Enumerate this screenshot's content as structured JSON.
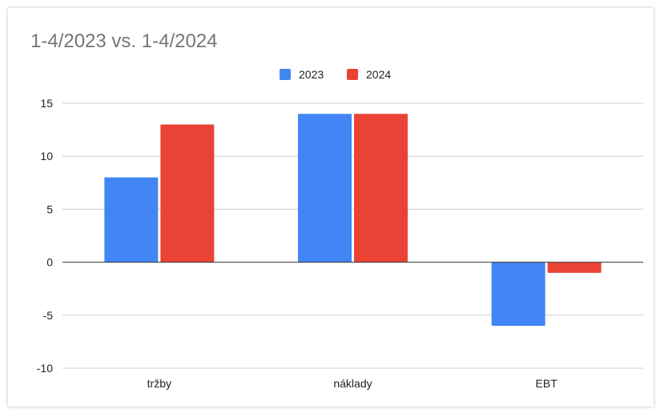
{
  "chart_data": {
    "type": "bar",
    "title": "1-4/2023 vs. 1-4/2024",
    "categories": [
      "tržby",
      "náklady",
      "EBT"
    ],
    "series": [
      {
        "name": "2023",
        "values": [
          8,
          14,
          -6
        ],
        "color": "#4285f4"
      },
      {
        "name": "2024",
        "values": [
          13,
          14,
          -1
        ],
        "color": "#ea4335"
      }
    ],
    "ylim": [
      -10,
      15
    ],
    "yticks": [
      15,
      10,
      5,
      0,
      -5,
      -10
    ],
    "xlabel": "",
    "ylabel": "",
    "grid": true,
    "legend_position": "top"
  }
}
